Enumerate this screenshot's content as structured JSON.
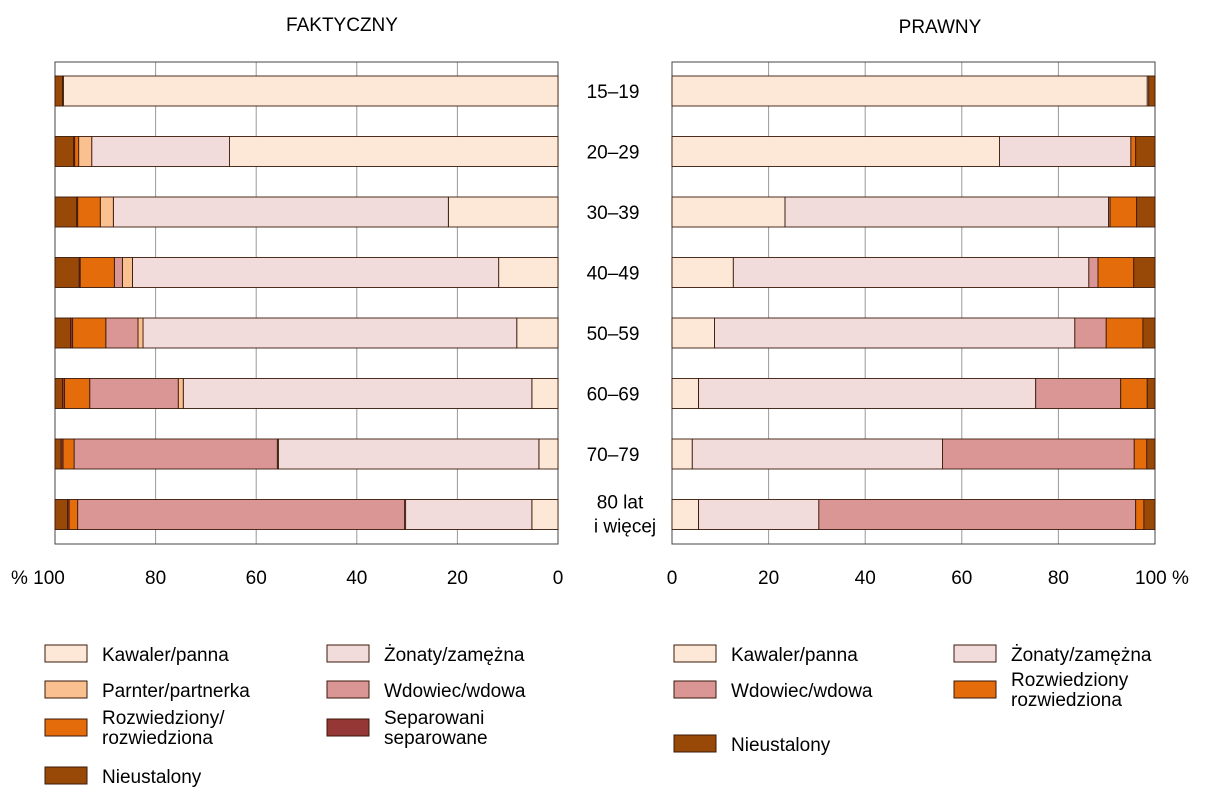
{
  "chart_data": [
    {
      "type": "bar",
      "orientation": "horizontal-stacked-100",
      "title": "FAKTYCZNY",
      "x_direction": "reversed",
      "xlim": [
        0,
        100
      ],
      "x_ticks": [
        "% 100",
        "80",
        "60",
        "40",
        "20",
        "0"
      ],
      "categories": [
        "15–19",
        "20–29",
        "30–39",
        "40–49",
        "50–59",
        "60–69",
        "70–79",
        "80 lat i więcej"
      ],
      "series": [
        {
          "name": "Kawaler/panna",
          "color": "#fde8d7",
          "values": [
            98.3,
            65.3,
            21.8,
            11.8,
            8.2,
            5.2,
            3.8,
            5.2
          ]
        },
        {
          "name": "Żonaty/zamężna",
          "color": "#f2dbdb",
          "values": [
            0.2,
            27.4,
            66.6,
            72.8,
            74.3,
            69.3,
            51.8,
            25.1
          ]
        },
        {
          "name": "Parnter/partnerka",
          "color": "#fac090",
          "values": [
            0.0,
            2.6,
            2.6,
            2.0,
            1.0,
            1.0,
            0.2,
            0.2
          ]
        },
        {
          "name": "Wdowiec/wdowa",
          "color": "#d99694",
          "values": [
            0.0,
            0.0,
            0.0,
            1.6,
            6.4,
            17.6,
            40.4,
            65.0
          ]
        },
        {
          "name": "Rozwiedziony/ rozwiedziona",
          "color": "#e46c0a",
          "values": [
            0.0,
            0.8,
            4.5,
            6.8,
            6.6,
            5.0,
            2.2,
            1.7
          ]
        },
        {
          "name": "Separowani separowane",
          "color": "#953735",
          "values": [
            0.0,
            0.2,
            0.2,
            0.2,
            0.4,
            0.4,
            0.4,
            0.3
          ]
        },
        {
          "name": "Nieustalony",
          "color": "#984807",
          "values": [
            1.5,
            3.7,
            4.3,
            4.8,
            3.1,
            1.5,
            1.2,
            2.5
          ]
        }
      ]
    },
    {
      "type": "bar",
      "orientation": "horizontal-stacked-100",
      "title": "PRAWNY",
      "x_direction": "normal",
      "xlim": [
        0,
        100
      ],
      "x_ticks": [
        "0",
        "20",
        "40",
        "60",
        "80",
        "100 %"
      ],
      "categories": [
        "15–19",
        "20–29",
        "30–39",
        "40–49",
        "50–59",
        "60–69",
        "70–79",
        "80 lat i więcej"
      ],
      "series": [
        {
          "name": "Kawaler/panna",
          "color": "#fde8d7",
          "values": [
            98.4,
            67.8,
            23.4,
            12.7,
            8.8,
            5.5,
            4.2,
            5.5
          ]
        },
        {
          "name": "Żonaty/zamężna",
          "color": "#f2dbdb",
          "values": [
            0.3,
            27.2,
            67.0,
            73.6,
            74.6,
            69.8,
            51.8,
            24.9
          ]
        },
        {
          "name": "Wdowiec/wdowa",
          "color": "#d99694",
          "values": [
            0.0,
            0.0,
            0.3,
            1.9,
            6.5,
            17.6,
            39.7,
            65.6
          ]
        },
        {
          "name": "Rozwiedziony rozwiedziona",
          "color": "#e46c0a",
          "values": [
            0.0,
            1.0,
            5.5,
            7.4,
            7.6,
            5.5,
            2.6,
            1.7
          ]
        },
        {
          "name": "Nieustalony",
          "color": "#984807",
          "values": [
            1.3,
            4.0,
            3.8,
            4.4,
            2.5,
            1.6,
            1.7,
            2.3
          ]
        }
      ]
    }
  ],
  "legends": [
    {
      "chart": "FAKTYCZNY",
      "items": [
        {
          "lines": [
            "Kawaler/panna"
          ],
          "color": "#fde8d7"
        },
        {
          "lines": [
            "Żonaty/zamężna"
          ],
          "color": "#f2dbdb"
        },
        {
          "lines": [
            "Parnter/partnerka"
          ],
          "color": "#fac090"
        },
        {
          "lines": [
            "Wdowiec/wdowa"
          ],
          "color": "#d99694"
        },
        {
          "lines": [
            "Rozwiedziony/",
            "rozwiedziona"
          ],
          "color": "#e46c0a"
        },
        {
          "lines": [
            "Separowani",
            "separowane"
          ],
          "color": "#953735"
        },
        {
          "lines": [
            "Nieustalony"
          ],
          "color": "#984807"
        }
      ]
    },
    {
      "chart": "PRAWNY",
      "items": [
        {
          "lines": [
            "Kawaler/panna"
          ],
          "color": "#fde8d7"
        },
        {
          "lines": [
            "Żonaty/zamężna"
          ],
          "color": "#f2dbdb"
        },
        {
          "lines": [
            "Wdowiec/wdowa"
          ],
          "color": "#d99694"
        },
        {
          "lines": [
            "Rozwiedziony",
            "rozwiedziona"
          ],
          "color": "#e46c0a"
        },
        {
          "lines": [
            "Nieustalony"
          ],
          "color": "#984807"
        }
      ]
    }
  ]
}
